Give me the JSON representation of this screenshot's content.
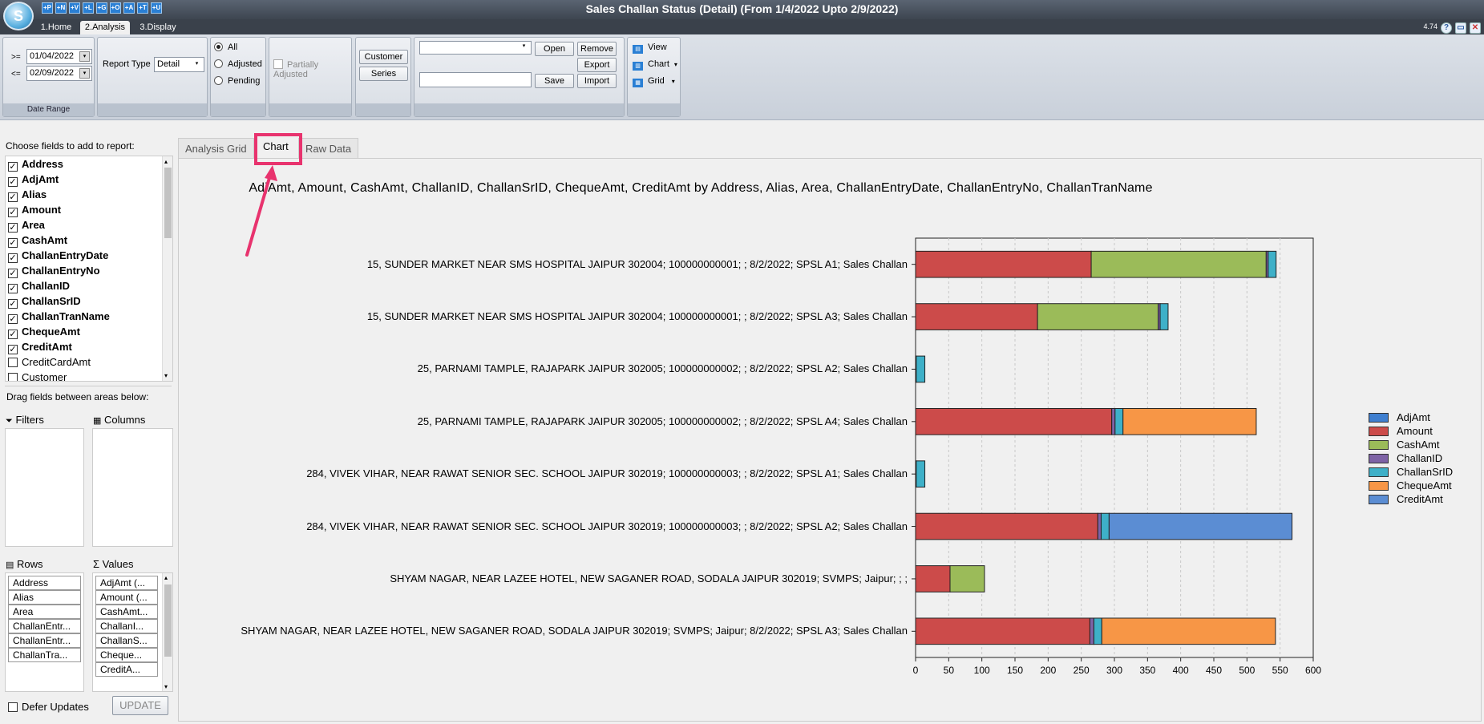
{
  "window": {
    "title": "Sales Challan Status (Detail)  (From 1/4/2022 Upto 2/9/2022)",
    "version": "4.74",
    "logo_letter": "S"
  },
  "ribbon_tabs": [
    "1.Home",
    "2.Analysis",
    "3.Display"
  ],
  "quick_access": [
    "+P",
    "+N",
    "+V",
    "+L",
    "+G",
    "+O",
    "+A",
    "+T",
    "+U"
  ],
  "date_range": {
    "ge_label": ">=",
    "le_label": "<=",
    "from": "01/04/2022",
    "to": "02/09/2022",
    "caption": "Date Range"
  },
  "report_type": {
    "label": "Report Type",
    "value": "Detail"
  },
  "status_filter": {
    "options": [
      "All",
      "Adjusted",
      "Pending"
    ],
    "selected": "All"
  },
  "partially_adjusted": "Partially Adjusted",
  "buttons": {
    "customer": "Customer",
    "series": "Series",
    "open": "Open",
    "remove": "Remove",
    "export": "Export",
    "save": "Save",
    "import": "Import"
  },
  "view_group": {
    "view": "View",
    "chart": "Chart",
    "grid": "Grid"
  },
  "left": {
    "choose_fields": "Choose fields to add to report:",
    "fields": [
      {
        "name": "Address",
        "checked": true
      },
      {
        "name": "AdjAmt",
        "checked": true
      },
      {
        "name": "Alias",
        "checked": true
      },
      {
        "name": "Amount",
        "checked": true
      },
      {
        "name": "Area",
        "checked": true
      },
      {
        "name": "CashAmt",
        "checked": true
      },
      {
        "name": "ChallanEntryDate",
        "checked": true
      },
      {
        "name": "ChallanEntryNo",
        "checked": true
      },
      {
        "name": "ChallanID",
        "checked": true
      },
      {
        "name": "ChallanSrID",
        "checked": true
      },
      {
        "name": "ChallanTranName",
        "checked": true
      },
      {
        "name": "ChequeAmt",
        "checked": true
      },
      {
        "name": "CreditAmt",
        "checked": true
      },
      {
        "name": "CreditCardAmt",
        "checked": false
      },
      {
        "name": "Customer",
        "checked": false
      }
    ],
    "drag_hint": "Drag fields between areas below:",
    "filters": "Filters",
    "columns": "Columns",
    "rows": "Rows",
    "values": "Values",
    "row_items": [
      "Address",
      "Alias",
      "Area",
      "ChallanEntr...",
      "ChallanEntr...",
      "ChallanTra..."
    ],
    "value_items": [
      "AdjAmt (...",
      "Amount (...",
      "CashAmt...",
      "ChallanI...",
      "ChallanS...",
      "Cheque...",
      "CreditA..."
    ],
    "defer_updates": "Defer Updates",
    "update": "UPDATE"
  },
  "main_tabs": [
    "Analysis Grid",
    "Chart",
    "Raw Data"
  ],
  "active_tab": "Chart",
  "chart_data": {
    "type": "bar",
    "orientation": "horizontal",
    "stacked": true,
    "title": "AdjAmt,  Amount,  CashAmt,  ChallanID,  ChallanSrID,  ChequeAmt,  CreditAmt  by  Address,  Alias,  Area,  ChallanEntryDate,  ChallanEntryNo,  ChallanTranName",
    "categories": [
      "15, SUNDER MARKET NEAR SMS HOSPITAL JAIPUR 302004; 100000000001; ; 8/2/2022; SPSL A1; Sales Challan",
      "15, SUNDER MARKET NEAR SMS HOSPITAL JAIPUR 302004; 100000000001; ; 8/2/2022; SPSL A3; Sales Challan",
      "25, PARNAMI TAMPLE, RAJAPARK JAIPUR 302005; 100000000002; ; 8/2/2022; SPSL A2; Sales Challan",
      "25, PARNAMI TAMPLE, RAJAPARK JAIPUR 302005; 100000000002; ; 8/2/2022; SPSL A4; Sales Challan",
      "284, VIVEK VIHAR, NEAR RAWAT SENIOR  SEC. SCHOOL JAIPUR 302019; 100000000003; ; 8/2/2022; SPSL A1; Sales Challan",
      "284, VIVEK VIHAR, NEAR RAWAT SENIOR  SEC. SCHOOL JAIPUR 302019; 100000000003; ; 8/2/2022; SPSL A2; Sales Challan",
      "SHYAM NAGAR, NEAR LAZEE HOTEL, NEW SAGANER ROAD, SODALA JAIPUR 302019; SVMPS; Jaipur; ; ;",
      "SHYAM NAGAR, NEAR LAZEE HOTEL, NEW SAGANER ROAD, SODALA JAIPUR 302019; SVMPS; Jaipur; 8/2/2022; SPSL A3; Sales Challan"
    ],
    "series": [
      {
        "name": "AdjAmt",
        "color": "#3f7fd0",
        "values": [
          0,
          0,
          0,
          0,
          0,
          0,
          0,
          0
        ]
      },
      {
        "name": "Amount",
        "color": "#cc4b4a",
        "values": [
          265,
          184,
          0,
          296,
          0,
          275,
          52,
          263
        ]
      },
      {
        "name": "CashAmt",
        "color": "#9bbb59",
        "values": [
          264,
          182,
          0,
          0,
          0,
          0,
          52,
          0
        ]
      },
      {
        "name": "ChallanID",
        "color": "#7e63a6",
        "values": [
          3,
          3,
          1,
          5,
          1,
          5,
          0,
          6
        ]
      },
      {
        "name": "ChallanSrID",
        "color": "#3eb0c8",
        "values": [
          12,
          12,
          13,
          12,
          13,
          12,
          0,
          12
        ]
      },
      {
        "name": "ChequeAmt",
        "color": "#f79646",
        "values": [
          0,
          0,
          0,
          201,
          0,
          0,
          0,
          262
        ]
      },
      {
        "name": "CreditAmt",
        "color": "#5b8dd3",
        "values": [
          0,
          0,
          0,
          0,
          0,
          276,
          0,
          0
        ]
      }
    ],
    "xlim": [
      0,
      600
    ],
    "xticks": [
      0,
      50,
      100,
      150,
      200,
      250,
      300,
      350,
      400,
      450,
      500,
      550,
      600
    ],
    "grid": true,
    "legend_position": "right"
  }
}
